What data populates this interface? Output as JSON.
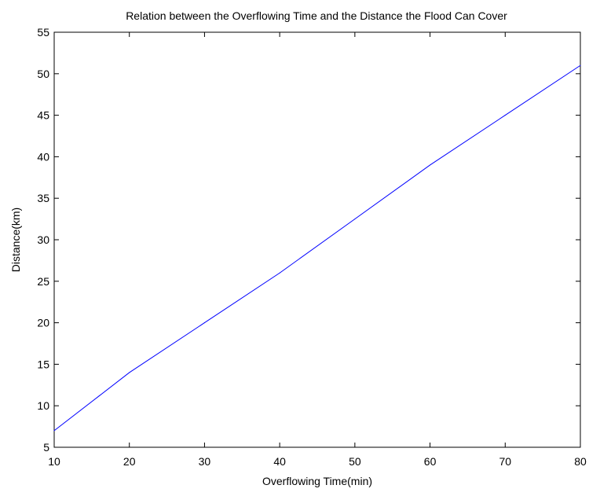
{
  "chart_data": {
    "type": "line",
    "title": "Relation between the Overflowing Time and the Distance the Flood Can Cover",
    "xlabel": "Overflowing Time(min)",
    "ylabel": "Distance(km)",
    "xlim": [
      10,
      80
    ],
    "ylim": [
      5,
      55
    ],
    "x_ticks": [
      10,
      20,
      30,
      40,
      50,
      60,
      70,
      80
    ],
    "y_ticks": [
      5,
      10,
      15,
      20,
      25,
      30,
      35,
      40,
      45,
      50,
      55
    ],
    "grid": false,
    "legend": "none",
    "series": [
      {
        "color": "#0000ff",
        "x": [
          10,
          20,
          30,
          40,
          50,
          60,
          70,
          80
        ],
        "y": [
          7,
          14,
          20,
          26,
          32.5,
          39,
          45,
          51
        ]
      }
    ]
  }
}
